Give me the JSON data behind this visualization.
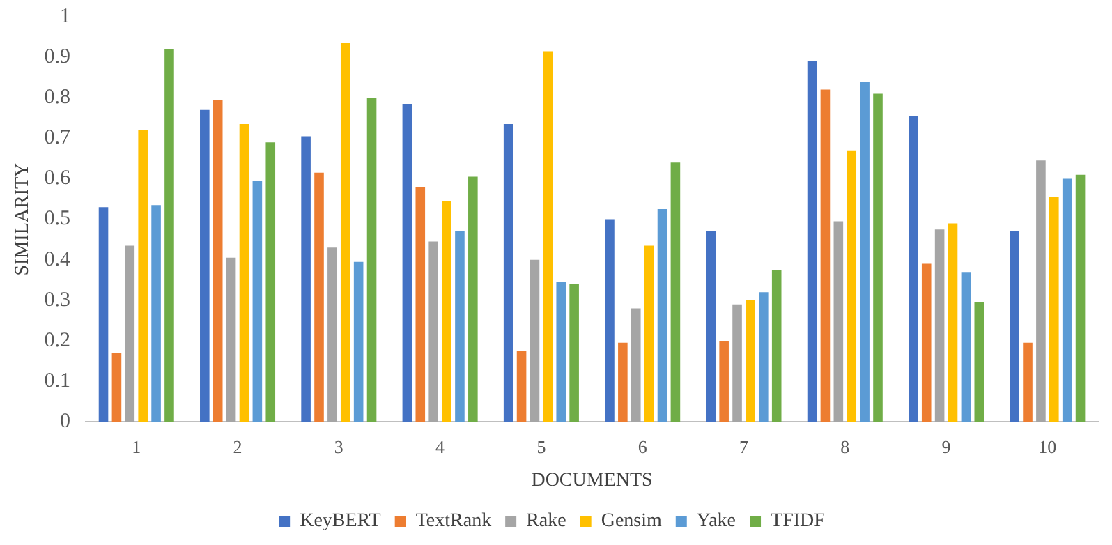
{
  "chart_data": {
    "type": "bar",
    "xlabel": "DOCUMENTS",
    "ylabel": "SIMILARITY",
    "categories": [
      "1",
      "2",
      "3",
      "4",
      "5",
      "6",
      "7",
      "8",
      "9",
      "10"
    ],
    "series": [
      {
        "name": "KeyBERT",
        "color": "#4472c4",
        "values": [
          0.53,
          0.77,
          0.705,
          0.785,
          0.735,
          0.5,
          0.47,
          0.89,
          0.755,
          0.47
        ]
      },
      {
        "name": "TextRank",
        "color": "#ed7d31",
        "values": [
          0.17,
          0.795,
          0.615,
          0.58,
          0.175,
          0.195,
          0.2,
          0.82,
          0.39,
          0.195
        ]
      },
      {
        "name": "Rake",
        "color": "#a5a5a5",
        "values": [
          0.435,
          0.405,
          0.43,
          0.445,
          0.4,
          0.28,
          0.29,
          0.495,
          0.475,
          0.645
        ]
      },
      {
        "name": "Gensim",
        "color": "#ffc000",
        "values": [
          0.72,
          0.735,
          0.935,
          0.545,
          0.915,
          0.435,
          0.3,
          0.67,
          0.49,
          0.555
        ]
      },
      {
        "name": "Yake",
        "color": "#5b9bd5",
        "values": [
          0.535,
          0.595,
          0.395,
          0.47,
          0.345,
          0.525,
          0.32,
          0.84,
          0.37,
          0.6
        ]
      },
      {
        "name": "TFIDF",
        "color": "#70ad47",
        "values": [
          0.92,
          0.69,
          0.8,
          0.605,
          0.34,
          0.64,
          0.375,
          0.81,
          0.295,
          0.61
        ]
      }
    ],
    "ylim": [
      0,
      1
    ],
    "yticks": [
      0,
      0.1,
      0.2,
      0.3,
      0.4,
      0.5,
      0.6,
      0.7,
      0.8,
      0.9,
      1
    ],
    "grid": false,
    "legend": "bottom"
  }
}
